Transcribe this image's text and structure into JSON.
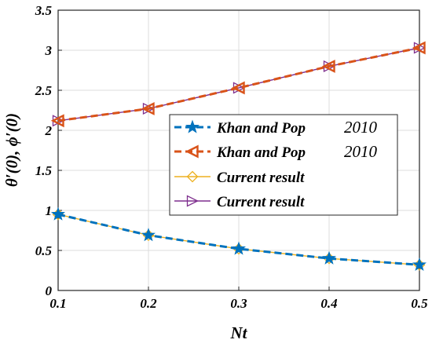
{
  "chart_data": {
    "type": "line",
    "xlabel": "Nt",
    "ylabel": "θ′(0), ϕ′(0)",
    "xlim": [
      0.1,
      0.5
    ],
    "ylim": [
      0,
      3.5
    ],
    "xticks": [
      "0.1",
      "0.2",
      "0.3",
      "0.4",
      "0.5"
    ],
    "yticks": [
      "0",
      "0.5",
      "1",
      "1.5",
      "2",
      "2.5",
      "3",
      "3.5"
    ],
    "grid": true,
    "legend_position": "right",
    "x": [
      0.1,
      0.2,
      0.3,
      0.4,
      0.5
    ],
    "series": [
      {
        "name": "Khan and Pop",
        "suffix": "2010",
        "values": [
          0.95,
          0.69,
          0.52,
          0.4,
          0.32
        ],
        "color": "#0072BD",
        "style": "dashed",
        "marker": "star"
      },
      {
        "name": "Khan and Pop",
        "suffix": "2010",
        "values": [
          2.12,
          2.27,
          2.53,
          2.8,
          3.03
        ],
        "color": "#D95319",
        "style": "dashed",
        "marker": "triangle-left"
      },
      {
        "name": "Current result",
        "values": [
          0.95,
          0.69,
          0.52,
          0.4,
          0.32
        ],
        "color": "#EDB120",
        "style": "solid",
        "marker": "diamond"
      },
      {
        "name": "Current result",
        "values": [
          2.12,
          2.27,
          2.53,
          2.8,
          3.03
        ],
        "color": "#7E2F8E",
        "style": "solid",
        "marker": "triangle-right"
      }
    ]
  }
}
